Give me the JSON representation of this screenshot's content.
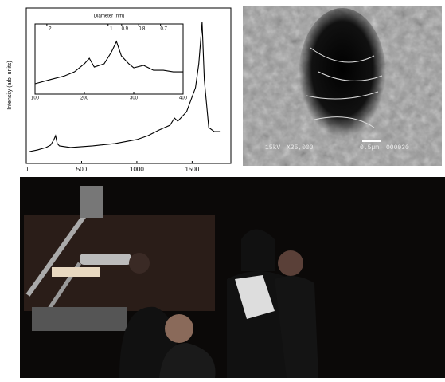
{
  "chart_data": [
    {
      "type": "line",
      "ylabel": "Intensity (arb. units)",
      "color": "#000000",
      "x": [
        30,
        100,
        180,
        220,
        250,
        265,
        280,
        300,
        400,
        600,
        800,
        1000,
        1100,
        1200,
        1300,
        1340,
        1370,
        1450,
        1530,
        1560,
        1590,
        1610,
        1650,
        1700,
        1750
      ],
      "values": [
        7.7,
        8.7,
        10.3,
        11.8,
        15.4,
        17.9,
        12.8,
        11.3,
        10.3,
        11.3,
        12.8,
        15.4,
        17.9,
        21.5,
        24.6,
        29.2,
        27.2,
        33.3,
        48.7,
        64.1,
        90.8,
        53.8,
        23.1,
        20.5,
        20.5
      ],
      "xlim": [
        0,
        1850
      ],
      "xticks": [
        0,
        500,
        1000,
        1500
      ],
      "ylim": [
        0,
        100
      ]
    },
    {
      "type": "line",
      "x2label": "Diameter (nm)",
      "color": "#000000",
      "x": [
        100,
        130,
        160,
        180,
        200,
        210,
        220,
        240,
        255,
        265,
        275,
        290,
        300,
        320,
        340,
        360,
        380,
        400
      ],
      "values": [
        14.8,
        20.5,
        26,
        31.8,
        43.2,
        51,
        38.6,
        43.2,
        60.2,
        75,
        54.5,
        43.2,
        37.5,
        40.9,
        34,
        34,
        31.8,
        31.8
      ],
      "xlim": [
        100,
        400
      ],
      "xticks": [
        100,
        200,
        300,
        400
      ],
      "x2ticks": [
        2,
        1,
        0.9,
        0.8,
        0.7
      ],
      "ylim": [
        0,
        100
      ]
    }
  ],
  "sem_image": {
    "voltage": "15kV",
    "magnification": "X35,000",
    "scale": "0.5µm",
    "image_id": "000030"
  }
}
